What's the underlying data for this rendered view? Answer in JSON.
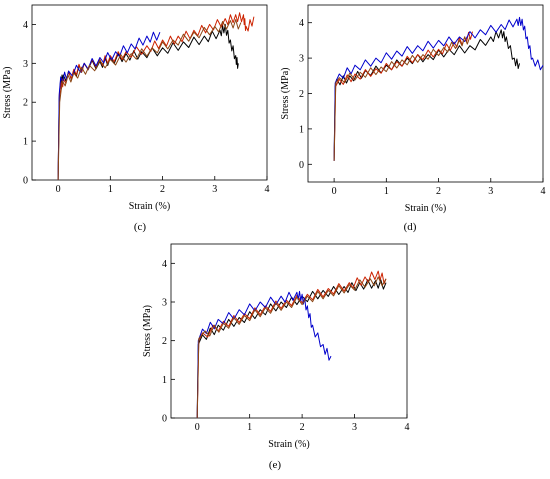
{
  "chart_data": [
    {
      "id": "c",
      "type": "line",
      "panel_label": "(c)",
      "xlabel": "Strain (%)",
      "ylabel": "Stress (MPa)",
      "xlim": [
        -0.5,
        4
      ],
      "ylim": [
        0,
        4.5
      ],
      "xticks": [
        0,
        1,
        2,
        3,
        4
      ],
      "yticks": [
        0,
        1,
        2,
        3,
        4
      ],
      "colors": [
        "#000000",
        "#cc2200",
        "#0000cc",
        "#8b4513"
      ],
      "series": [
        {
          "color": "#000000",
          "points": [
            [
              0,
              0
            ],
            [
              0.02,
              2.1
            ],
            [
              0.05,
              2.6
            ],
            [
              0.1,
              2.7
            ],
            [
              0.3,
              2.8
            ],
            [
              0.5,
              3.0
            ],
            [
              0.8,
              3.05
            ],
            [
              1.0,
              3.15
            ],
            [
              1.3,
              3.25
            ],
            [
              1.6,
              3.3
            ],
            [
              2.0,
              3.4
            ],
            [
              2.4,
              3.55
            ],
            [
              2.8,
              3.7
            ],
            [
              3.1,
              3.85
            ],
            [
              3.2,
              4.0
            ],
            [
              3.3,
              3.6
            ],
            [
              3.4,
              3.2
            ],
            [
              3.45,
              3.0
            ]
          ]
        },
        {
          "color": "#cc2200",
          "points": [
            [
              0,
              0
            ],
            [
              0.02,
              2.0
            ],
            [
              0.05,
              2.5
            ],
            [
              0.1,
              2.6
            ],
            [
              0.3,
              2.85
            ],
            [
              0.5,
              3.0
            ],
            [
              0.8,
              3.1
            ],
            [
              1.0,
              3.2
            ],
            [
              1.3,
              3.3
            ],
            [
              1.7,
              3.45
            ],
            [
              2.0,
              3.6
            ],
            [
              2.3,
              3.7
            ],
            [
              2.6,
              3.85
            ],
            [
              2.9,
              4.0
            ],
            [
              3.2,
              4.15
            ],
            [
              3.4,
              4.25
            ],
            [
              3.55,
              4.25
            ],
            [
              3.6,
              3.95
            ],
            [
              3.75,
              4.2
            ]
          ]
        },
        {
          "color": "#0000cc",
          "points": [
            [
              0,
              0
            ],
            [
              0.02,
              2.2
            ],
            [
              0.05,
              2.65
            ],
            [
              0.2,
              2.8
            ],
            [
              0.5,
              3.0
            ],
            [
              0.8,
              3.15
            ],
            [
              1.1,
              3.3
            ],
            [
              1.4,
              3.5
            ],
            [
              1.7,
              3.7
            ],
            [
              1.95,
              3.8
            ]
          ]
        },
        {
          "color": "#8b4513",
          "points": [
            [
              0,
              0
            ],
            [
              0.03,
              2.0
            ],
            [
              0.08,
              2.55
            ],
            [
              0.3,
              2.75
            ],
            [
              0.6,
              2.95
            ],
            [
              1.0,
              3.1
            ],
            [
              1.4,
              3.25
            ],
            [
              1.8,
              3.4
            ],
            [
              2.2,
              3.6
            ],
            [
              2.6,
              3.8
            ],
            [
              3.0,
              3.95
            ],
            [
              3.3,
              4.1
            ],
            [
              3.5,
              4.05
            ]
          ]
        }
      ]
    },
    {
      "id": "d",
      "type": "line",
      "panel_label": "(d)",
      "xlabel": "Strain (%)",
      "ylabel": "Stress (MPa)",
      "xlim": [
        -0.5,
        4
      ],
      "ylim": [
        -0.5,
        4.5
      ],
      "xticks": [
        0,
        1,
        2,
        3,
        4
      ],
      "yticks": [
        0,
        1,
        2,
        3,
        4
      ],
      "series": [
        {
          "color": "#000000",
          "points": [
            [
              0,
              0.1
            ],
            [
              0.02,
              2.2
            ],
            [
              0.05,
              2.4
            ],
            [
              0.3,
              2.5
            ],
            [
              0.6,
              2.65
            ],
            [
              1.0,
              2.8
            ],
            [
              1.4,
              3.0
            ],
            [
              1.8,
              3.1
            ],
            [
              2.2,
              3.25
            ],
            [
              2.6,
              3.35
            ],
            [
              3.0,
              3.6
            ],
            [
              3.2,
              3.8
            ],
            [
              3.3,
              3.6
            ],
            [
              3.45,
              3.0
            ],
            [
              3.55,
              2.85
            ]
          ]
        },
        {
          "color": "#cc2200",
          "points": [
            [
              0,
              0.1
            ],
            [
              0.03,
              2.2
            ],
            [
              0.1,
              2.4
            ],
            [
              0.4,
              2.55
            ],
            [
              0.8,
              2.7
            ],
            [
              1.2,
              2.9
            ],
            [
              1.6,
              3.1
            ],
            [
              2.0,
              3.25
            ],
            [
              2.3,
              3.45
            ],
            [
              2.5,
              3.6
            ],
            [
              2.65,
              3.75
            ]
          ]
        },
        {
          "color": "#0000cc",
          "points": [
            [
              0,
              0.1
            ],
            [
              0.02,
              2.3
            ],
            [
              0.1,
              2.55
            ],
            [
              0.4,
              2.8
            ],
            [
              0.8,
              3.0
            ],
            [
              1.2,
              3.2
            ],
            [
              1.6,
              3.35
            ],
            [
              2.0,
              3.5
            ],
            [
              2.4,
              3.6
            ],
            [
              2.8,
              3.8
            ],
            [
              3.2,
              3.95
            ],
            [
              3.5,
              4.1
            ],
            [
              3.6,
              4.1
            ],
            [
              3.7,
              3.6
            ],
            [
              3.8,
              3.0
            ],
            [
              4.0,
              2.8
            ]
          ]
        },
        {
          "color": "#8b4513",
          "points": [
            [
              0,
              0.1
            ],
            [
              0.03,
              2.3
            ],
            [
              0.1,
              2.45
            ],
            [
              0.5,
              2.6
            ],
            [
              0.9,
              2.75
            ],
            [
              1.3,
              2.95
            ],
            [
              1.7,
              3.1
            ],
            [
              2.1,
              3.3
            ],
            [
              2.4,
              3.5
            ],
            [
              2.6,
              3.6
            ]
          ]
        }
      ]
    },
    {
      "id": "e",
      "type": "line",
      "panel_label": "(e)",
      "xlabel": "Strain (%)",
      "ylabel": "Stress (MPa)",
      "xlim": [
        -0.5,
        4
      ],
      "ylim": [
        0,
        4.5
      ],
      "xticks": [
        0,
        1,
        2,
        3,
        4
      ],
      "yticks": [
        0,
        1,
        2,
        3,
        4
      ],
      "series": [
        {
          "color": "#000000",
          "points": [
            [
              0,
              0
            ],
            [
              0.02,
              1.9
            ],
            [
              0.1,
              2.15
            ],
            [
              0.4,
              2.4
            ],
            [
              0.8,
              2.6
            ],
            [
              1.2,
              2.8
            ],
            [
              1.6,
              3.0
            ],
            [
              2.0,
              3.15
            ],
            [
              2.4,
              3.3
            ],
            [
              2.8,
              3.4
            ],
            [
              3.1,
              3.5
            ],
            [
              3.4,
              3.55
            ],
            [
              3.6,
              3.5
            ]
          ]
        },
        {
          "color": "#cc2200",
          "points": [
            [
              0,
              0
            ],
            [
              0.03,
              2.0
            ],
            [
              0.1,
              2.2
            ],
            [
              0.5,
              2.5
            ],
            [
              0.9,
              2.7
            ],
            [
              1.3,
              2.9
            ],
            [
              1.7,
              3.05
            ],
            [
              2.1,
              3.2
            ],
            [
              2.5,
              3.35
            ],
            [
              2.9,
              3.5
            ],
            [
              3.2,
              3.65
            ],
            [
              3.45,
              3.8
            ],
            [
              3.6,
              3.6
            ]
          ]
        },
        {
          "color": "#0000cc",
          "points": [
            [
              0,
              0
            ],
            [
              0.02,
              2.0
            ],
            [
              0.1,
              2.3
            ],
            [
              0.4,
              2.55
            ],
            [
              0.8,
              2.8
            ],
            [
              1.2,
              3.0
            ],
            [
              1.6,
              3.15
            ],
            [
              1.9,
              3.25
            ],
            [
              2.0,
              3.2
            ],
            [
              2.1,
              2.9
            ],
            [
              2.2,
              2.4
            ],
            [
              2.4,
              1.9
            ],
            [
              2.55,
              1.6
            ]
          ]
        },
        {
          "color": "#8b4513",
          "points": [
            [
              0,
              0
            ],
            [
              0.03,
              2.05
            ],
            [
              0.15,
              2.25
            ],
            [
              0.5,
              2.45
            ],
            [
              0.9,
              2.65
            ],
            [
              1.3,
              2.85
            ],
            [
              1.7,
              3.0
            ],
            [
              2.1,
              3.15
            ],
            [
              2.5,
              3.3
            ],
            [
              2.9,
              3.45
            ],
            [
              3.3,
              3.6
            ],
            [
              3.6,
              3.6
            ]
          ]
        }
      ]
    }
  ]
}
